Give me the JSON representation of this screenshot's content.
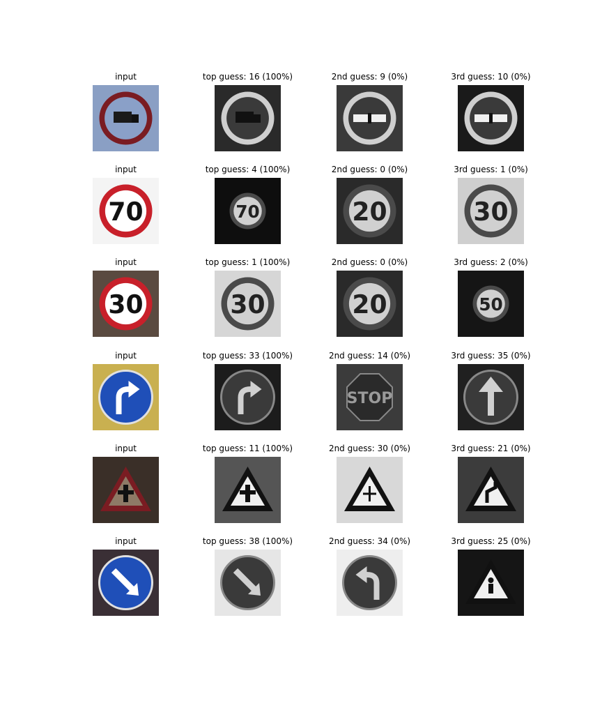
{
  "rows": [
    {
      "cells": [
        {
          "caption": "input",
          "sign": "no-trucks",
          "color": true,
          "bg": "#8a9fc4"
        },
        {
          "caption": "top guess: 16 (100%)",
          "sign": "no-trucks",
          "color": false,
          "bg": "#2a2a2a"
        },
        {
          "caption": "2nd guess: 9 (0%)",
          "sign": "no-passing",
          "color": false,
          "bg": "#3a3a3a"
        },
        {
          "caption": "3rd guess: 10 (0%)",
          "sign": "no-passing-trucks",
          "color": false,
          "bg": "#1a1a1a"
        }
      ]
    },
    {
      "cells": [
        {
          "caption": "input",
          "sign": "speed",
          "label": "70",
          "color": true,
          "bg": "#f4f4f4"
        },
        {
          "caption": "top guess: 4 (100%)",
          "sign": "speed",
          "label": "70",
          "color": false,
          "bg": "#0e0e0e",
          "small": true
        },
        {
          "caption": "2nd guess: 0 (0%)",
          "sign": "speed",
          "label": "20",
          "color": false,
          "bg": "#2a2a2a"
        },
        {
          "caption": "3rd guess: 1 (0%)",
          "sign": "speed",
          "label": "30",
          "color": false,
          "bg": "#cfcfcf"
        }
      ]
    },
    {
      "cells": [
        {
          "caption": "input",
          "sign": "speed",
          "label": "30",
          "color": true,
          "bg": "#5a4a40"
        },
        {
          "caption": "top guess: 1 (100%)",
          "sign": "speed",
          "label": "30",
          "color": false,
          "bg": "#d6d6d6"
        },
        {
          "caption": "2nd guess: 0 (0%)",
          "sign": "speed",
          "label": "20",
          "color": false,
          "bg": "#2a2a2a"
        },
        {
          "caption": "3rd guess: 2 (0%)",
          "sign": "speed",
          "label": "50",
          "color": false,
          "bg": "#151515",
          "small": true
        }
      ]
    },
    {
      "cells": [
        {
          "caption": "input",
          "sign": "turn-right",
          "color": true,
          "bg": "#c9b050"
        },
        {
          "caption": "top guess: 33 (100%)",
          "sign": "turn-right",
          "color": false,
          "bg": "#1c1c1c"
        },
        {
          "caption": "2nd guess: 14 (0%)",
          "sign": "stop",
          "label": "STOP",
          "color": false,
          "bg": "#3b3b3b"
        },
        {
          "caption": "3rd guess: 35 (0%)",
          "sign": "ahead",
          "color": false,
          "bg": "#202020"
        }
      ]
    },
    {
      "cells": [
        {
          "caption": "input",
          "sign": "triangle-junction",
          "color": true,
          "bg": "#3a2f28"
        },
        {
          "caption": "top guess: 11 (100%)",
          "sign": "triangle-junction",
          "color": false,
          "bg": "#555555"
        },
        {
          "caption": "2nd guess: 30 (0%)",
          "sign": "triangle-snow",
          "color": false,
          "bg": "#d8d8d8"
        },
        {
          "caption": "3rd guess: 21 (0%)",
          "sign": "triangle-curve",
          "color": false,
          "bg": "#3c3c3c"
        }
      ]
    },
    {
      "cells": [
        {
          "caption": "input",
          "sign": "keep-right",
          "color": true,
          "bg": "#3a2f35"
        },
        {
          "caption": "top guess: 38 (100%)",
          "sign": "keep-right",
          "color": false,
          "bg": "#e6e6e6"
        },
        {
          "caption": "2nd guess: 34 (0%)",
          "sign": "turn-left",
          "color": false,
          "bg": "#eeeeee"
        },
        {
          "caption": "3rd guess: 25 (0%)",
          "sign": "triangle-work",
          "color": false,
          "bg": "#151515"
        }
      ]
    }
  ]
}
